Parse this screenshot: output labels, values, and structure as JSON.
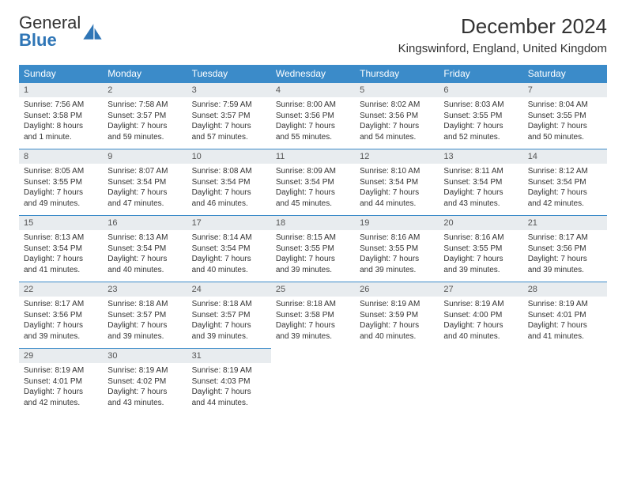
{
  "logo": {
    "text_gray": "General",
    "text_blue": "Blue"
  },
  "title": "December 2024",
  "location": "Kingswinford, England, United Kingdom",
  "colors": {
    "header_bg": "#3b8bc9",
    "header_text": "#ffffff",
    "daynum_bg": "#e8ecef",
    "border": "#3b8bc9",
    "text": "#333333"
  },
  "day_headers": [
    "Sunday",
    "Monday",
    "Tuesday",
    "Wednesday",
    "Thursday",
    "Friday",
    "Saturday"
  ],
  "weeks": [
    [
      {
        "n": "1",
        "sr": "Sunrise: 7:56 AM",
        "ss": "Sunset: 3:58 PM",
        "dl": "Daylight: 8 hours and 1 minute."
      },
      {
        "n": "2",
        "sr": "Sunrise: 7:58 AM",
        "ss": "Sunset: 3:57 PM",
        "dl": "Daylight: 7 hours and 59 minutes."
      },
      {
        "n": "3",
        "sr": "Sunrise: 7:59 AM",
        "ss": "Sunset: 3:57 PM",
        "dl": "Daylight: 7 hours and 57 minutes."
      },
      {
        "n": "4",
        "sr": "Sunrise: 8:00 AM",
        "ss": "Sunset: 3:56 PM",
        "dl": "Daylight: 7 hours and 55 minutes."
      },
      {
        "n": "5",
        "sr": "Sunrise: 8:02 AM",
        "ss": "Sunset: 3:56 PM",
        "dl": "Daylight: 7 hours and 54 minutes."
      },
      {
        "n": "6",
        "sr": "Sunrise: 8:03 AM",
        "ss": "Sunset: 3:55 PM",
        "dl": "Daylight: 7 hours and 52 minutes."
      },
      {
        "n": "7",
        "sr": "Sunrise: 8:04 AM",
        "ss": "Sunset: 3:55 PM",
        "dl": "Daylight: 7 hours and 50 minutes."
      }
    ],
    [
      {
        "n": "8",
        "sr": "Sunrise: 8:05 AM",
        "ss": "Sunset: 3:55 PM",
        "dl": "Daylight: 7 hours and 49 minutes."
      },
      {
        "n": "9",
        "sr": "Sunrise: 8:07 AM",
        "ss": "Sunset: 3:54 PM",
        "dl": "Daylight: 7 hours and 47 minutes."
      },
      {
        "n": "10",
        "sr": "Sunrise: 8:08 AM",
        "ss": "Sunset: 3:54 PM",
        "dl": "Daylight: 7 hours and 46 minutes."
      },
      {
        "n": "11",
        "sr": "Sunrise: 8:09 AM",
        "ss": "Sunset: 3:54 PM",
        "dl": "Daylight: 7 hours and 45 minutes."
      },
      {
        "n": "12",
        "sr": "Sunrise: 8:10 AM",
        "ss": "Sunset: 3:54 PM",
        "dl": "Daylight: 7 hours and 44 minutes."
      },
      {
        "n": "13",
        "sr": "Sunrise: 8:11 AM",
        "ss": "Sunset: 3:54 PM",
        "dl": "Daylight: 7 hours and 43 minutes."
      },
      {
        "n": "14",
        "sr": "Sunrise: 8:12 AM",
        "ss": "Sunset: 3:54 PM",
        "dl": "Daylight: 7 hours and 42 minutes."
      }
    ],
    [
      {
        "n": "15",
        "sr": "Sunrise: 8:13 AM",
        "ss": "Sunset: 3:54 PM",
        "dl": "Daylight: 7 hours and 41 minutes."
      },
      {
        "n": "16",
        "sr": "Sunrise: 8:13 AM",
        "ss": "Sunset: 3:54 PM",
        "dl": "Daylight: 7 hours and 40 minutes."
      },
      {
        "n": "17",
        "sr": "Sunrise: 8:14 AM",
        "ss": "Sunset: 3:54 PM",
        "dl": "Daylight: 7 hours and 40 minutes."
      },
      {
        "n": "18",
        "sr": "Sunrise: 8:15 AM",
        "ss": "Sunset: 3:55 PM",
        "dl": "Daylight: 7 hours and 39 minutes."
      },
      {
        "n": "19",
        "sr": "Sunrise: 8:16 AM",
        "ss": "Sunset: 3:55 PM",
        "dl": "Daylight: 7 hours and 39 minutes."
      },
      {
        "n": "20",
        "sr": "Sunrise: 8:16 AM",
        "ss": "Sunset: 3:55 PM",
        "dl": "Daylight: 7 hours and 39 minutes."
      },
      {
        "n": "21",
        "sr": "Sunrise: 8:17 AM",
        "ss": "Sunset: 3:56 PM",
        "dl": "Daylight: 7 hours and 39 minutes."
      }
    ],
    [
      {
        "n": "22",
        "sr": "Sunrise: 8:17 AM",
        "ss": "Sunset: 3:56 PM",
        "dl": "Daylight: 7 hours and 39 minutes."
      },
      {
        "n": "23",
        "sr": "Sunrise: 8:18 AM",
        "ss": "Sunset: 3:57 PM",
        "dl": "Daylight: 7 hours and 39 minutes."
      },
      {
        "n": "24",
        "sr": "Sunrise: 8:18 AM",
        "ss": "Sunset: 3:57 PM",
        "dl": "Daylight: 7 hours and 39 minutes."
      },
      {
        "n": "25",
        "sr": "Sunrise: 8:18 AM",
        "ss": "Sunset: 3:58 PM",
        "dl": "Daylight: 7 hours and 39 minutes."
      },
      {
        "n": "26",
        "sr": "Sunrise: 8:19 AM",
        "ss": "Sunset: 3:59 PM",
        "dl": "Daylight: 7 hours and 40 minutes."
      },
      {
        "n": "27",
        "sr": "Sunrise: 8:19 AM",
        "ss": "Sunset: 4:00 PM",
        "dl": "Daylight: 7 hours and 40 minutes."
      },
      {
        "n": "28",
        "sr": "Sunrise: 8:19 AM",
        "ss": "Sunset: 4:01 PM",
        "dl": "Daylight: 7 hours and 41 minutes."
      }
    ],
    [
      {
        "n": "29",
        "sr": "Sunrise: 8:19 AM",
        "ss": "Sunset: 4:01 PM",
        "dl": "Daylight: 7 hours and 42 minutes."
      },
      {
        "n": "30",
        "sr": "Sunrise: 8:19 AM",
        "ss": "Sunset: 4:02 PM",
        "dl": "Daylight: 7 hours and 43 minutes."
      },
      {
        "n": "31",
        "sr": "Sunrise: 8:19 AM",
        "ss": "Sunset: 4:03 PM",
        "dl": "Daylight: 7 hours and 44 minutes."
      },
      null,
      null,
      null,
      null
    ]
  ]
}
